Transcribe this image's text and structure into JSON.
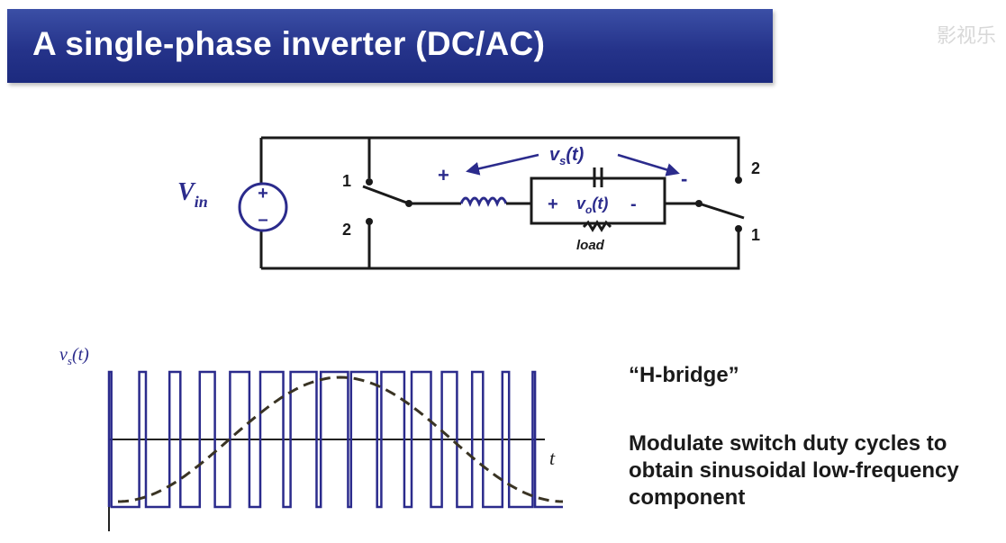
{
  "slide": {
    "title": "A single-phase inverter (DC/AC)",
    "watermark": "影视乐"
  },
  "circuit": {
    "source_label": "V",
    "source_sub": "in",
    "source_plus": "+",
    "source_minus": "–",
    "left_switch_top": "1",
    "left_switch_bottom": "2",
    "right_switch_top": "2",
    "right_switch_bottom": "1",
    "vs_label": "v",
    "vs_sub": "s",
    "vs_arg": "(t)",
    "vs_plus": "+",
    "vs_minus": "-",
    "vo_label": "v",
    "vo_sub": "o",
    "vo_arg": "(t)",
    "vo_plus": "+",
    "vo_minus": "-",
    "load_label": "load"
  },
  "waveform": {
    "y_label": "v",
    "y_sub": "s",
    "y_arg": "(t)",
    "x_label": "t",
    "pulse_duty_cycles": [
      0.08,
      0.22,
      0.36,
      0.5,
      0.64,
      0.76,
      0.86,
      0.9,
      0.86,
      0.76,
      0.64,
      0.5,
      0.36,
      0.22,
      0.08
    ],
    "colors": {
      "pulse": "#2b2b8c",
      "average": "#3a3424",
      "axis": "#222222"
    }
  },
  "notes": {
    "hbridge": "“H-bridge”",
    "description": "Modulate switch duty cycles to obtain sinusoidal low-frequency component"
  }
}
